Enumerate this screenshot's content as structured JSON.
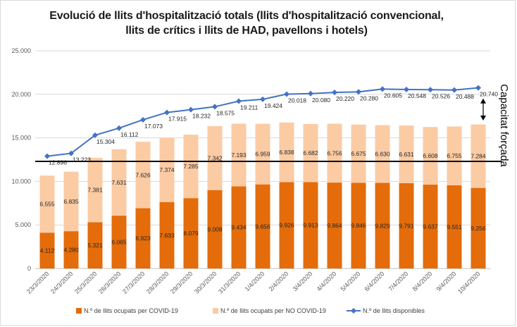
{
  "chart_data": {
    "type": "bar",
    "stacked": true,
    "title_lines": [
      "Evolució de llits d'hospitalització totals (llits d'hospitalització convencional,",
      "llits de crítics i llits de HAD, pavellons i hotels)"
    ],
    "categories": [
      "23/3/2020",
      "24/3/2020",
      "25/3/2020",
      "26/3/2020",
      "27/3/2020",
      "28/3/2020",
      "29/3/2020",
      "30/3/2020",
      "31/3/2020",
      "1/4/2020",
      "2/4/2020",
      "3/4/2020",
      "4/4/2020",
      "5/4/2020",
      "6/4/2020",
      "7/4/2020",
      "8/4/2020",
      "9/4/2020",
      "10/4/2020"
    ],
    "y_ticks": [
      "0",
      "5.000",
      "10.000",
      "15.000",
      "20.000",
      "25.000"
    ],
    "ylim": [
      0,
      25000
    ],
    "series": [
      {
        "name": "N.º de llits ocupats per  COVID-19",
        "kind": "bar",
        "color": "#e46c0a",
        "values": [
          4112,
          4280,
          5321,
          6065,
          6923,
          7633,
          8079,
          9008,
          9434,
          9656,
          9926,
          9913,
          9864,
          9846,
          9829,
          9791,
          9637,
          9551,
          9256
        ],
        "labels": [
          "4.112",
          "4.280",
          "5.321",
          "6.065",
          "6.923",
          "7.633",
          "8.079",
          "9.008",
          "9.434",
          "9.656",
          "9.926",
          "9.913",
          "9.864",
          "9.846",
          "9.829",
          "9.791",
          "9.637",
          "9.551",
          "9.256"
        ]
      },
      {
        "name": "N.º de llits ocupats per NO COVID-19",
        "kind": "bar",
        "color": "#fbcba4",
        "values": [
          6555,
          6835,
          7381,
          7631,
          7626,
          7374,
          7285,
          7342,
          7193,
          6959,
          6838,
          6682,
          6756,
          6675,
          6630,
          6631,
          6608,
          6755,
          7284
        ],
        "labels": [
          "6.555",
          "6.835",
          "7.381",
          "7.631",
          "7.626",
          "7.374",
          "7.285",
          "7.342",
          "7.193",
          "6.959",
          "6.838",
          "6.682",
          "6.756",
          "6.675",
          "6.630",
          "6.631",
          "6.608",
          "6.755",
          "7.284"
        ]
      },
      {
        "name": "N.º de llits disponibles",
        "kind": "line",
        "color": "#4472c4",
        "values": [
          12896,
          13223,
          15304,
          16112,
          17073,
          17915,
          18232,
          18575,
          19211,
          19424,
          20018,
          20080,
          20220,
          20280,
          20605,
          20548,
          20526,
          20488,
          20740
        ],
        "labels": [
          "12.896",
          "13.223",
          "15.304",
          "16.112",
          "17.073",
          "17.915",
          "18.232",
          "18.575",
          "19.211",
          "19.424",
          "20.018",
          "20.080",
          "20.220",
          "20.280",
          "20.605",
          "20.548",
          "20.526",
          "20.488",
          "20.740"
        ]
      }
    ],
    "reference_line": {
      "value": 12300,
      "color": "#000000"
    },
    "annotation": "Capacitat forçada",
    "legend_position": "bottom",
    "grid": true
  }
}
